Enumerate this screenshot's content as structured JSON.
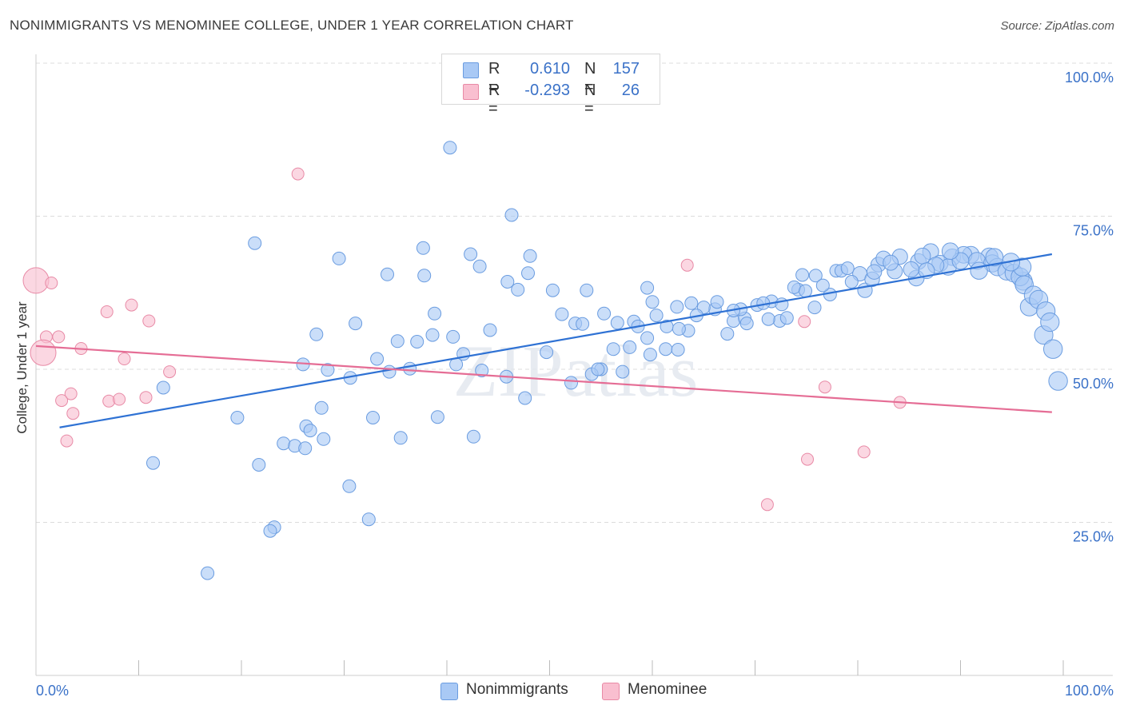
{
  "title": "NONIMMIGRANTS VS MENOMINEE COLLEGE, UNDER 1 YEAR CORRELATION CHART",
  "source": "Source: ZipAtlas.com",
  "watermark": "ZIPatlas",
  "legend": {
    "rows": [
      {
        "label": "R =",
        "r": "0.610",
        "n_label": "N =",
        "n": "157",
        "color": "#a9c9f5",
        "border": "#6a9ce0"
      },
      {
        "label": "R =",
        "r": "-0.293",
        "n_label": "N =",
        "n": "26",
        "color": "#f9bfd0",
        "border": "#e88aa6"
      }
    ]
  },
  "bottom_legend": [
    {
      "name": "Nonimmigrants",
      "color": "#a9c9f5",
      "border": "#6a9ce0"
    },
    {
      "name": "Menominee",
      "color": "#f9bfd0",
      "border": "#e88aa6"
    }
  ],
  "chart_data": {
    "type": "scatter",
    "title": "NONIMMIGRANTS VS MENOMINEE COLLEGE, UNDER 1 YEAR CORRELATION CHART",
    "xlabel": "",
    "ylabel": "College, Under 1 year",
    "xlim": [
      0,
      100
    ],
    "ylim": [
      0,
      100
    ],
    "x_tick_labels": [
      "0.0%",
      "100.0%"
    ],
    "y_tick_labels": [
      "25.0%",
      "50.0%",
      "75.0%",
      "100.0%"
    ],
    "y_ticks": [
      25,
      50,
      75,
      100
    ],
    "x_minor_ticks": [
      10,
      20,
      30,
      40,
      50,
      60,
      70,
      80,
      90
    ],
    "grid": true,
    "colors": {
      "blue_fill": "#a9c9f5",
      "blue_edge": "#6a9ce0",
      "blue_line": "#2f72d4",
      "pink_fill": "#f9bfd0",
      "pink_edge": "#e88aa6",
      "pink_line": "#e56d95",
      "tick_blue": "#3b72c8"
    },
    "series": [
      {
        "name": "Nonimmigrants",
        "trend": [
          [
            2.3,
            40.5
          ],
          [
            98.9,
            68.8
          ]
        ],
        "points": [
          [
            40.3,
            86.2
          ],
          [
            46.3,
            75.2
          ],
          [
            21.3,
            70.6
          ],
          [
            37.7,
            69.8
          ],
          [
            29.5,
            68.1
          ],
          [
            42.3,
            68.8
          ],
          [
            48.1,
            68.5
          ],
          [
            34.2,
            65.5
          ],
          [
            37.8,
            65.3
          ],
          [
            43.2,
            66.8
          ],
          [
            47.9,
            65.7
          ],
          [
            45.9,
            64.3
          ],
          [
            46.9,
            63.0
          ],
          [
            50.3,
            62.9
          ],
          [
            53.6,
            62.9
          ],
          [
            60.0,
            61.0
          ],
          [
            59.5,
            63.3
          ],
          [
            60.4,
            58.8
          ],
          [
            62.4,
            60.2
          ],
          [
            61.4,
            57.0
          ],
          [
            63.5,
            56.3
          ],
          [
            66.1,
            59.8
          ],
          [
            67.3,
            55.8
          ],
          [
            67.9,
            57.9
          ],
          [
            69.0,
            58.3
          ],
          [
            70.2,
            60.5
          ],
          [
            71.6,
            61.1
          ],
          [
            72.4,
            57.9
          ],
          [
            74.2,
            63.0
          ],
          [
            74.6,
            65.4
          ],
          [
            75.9,
            65.3
          ],
          [
            77.9,
            66.1
          ],
          [
            80.2,
            65.6
          ],
          [
            80.7,
            62.9
          ],
          [
            82.0,
            67.1
          ],
          [
            85.9,
            67.6
          ],
          [
            87.1,
            69.2
          ],
          [
            89.2,
            68.3
          ],
          [
            91.0,
            68.7
          ],
          [
            92.8,
            68.4
          ],
          [
            96.1,
            64.4
          ],
          [
            98.1,
            55.6
          ],
          [
            96.7,
            60.2
          ],
          [
            37.1,
            54.5
          ],
          [
            40.6,
            55.3
          ],
          [
            31.1,
            57.5
          ],
          [
            38.8,
            59.1
          ],
          [
            44.2,
            56.4
          ],
          [
            51.2,
            59.0
          ],
          [
            55.3,
            59.1
          ],
          [
            52.5,
            57.5
          ],
          [
            58.2,
            57.8
          ],
          [
            57.8,
            53.6
          ],
          [
            59.5,
            55.1
          ],
          [
            61.3,
            53.3
          ],
          [
            56.2,
            53.3
          ],
          [
            53.2,
            57.4
          ],
          [
            59.8,
            52.4
          ],
          [
            62.5,
            53.2
          ],
          [
            49.7,
            52.8
          ],
          [
            55.0,
            50.0
          ],
          [
            57.1,
            49.6
          ],
          [
            52.1,
            47.8
          ],
          [
            54.1,
            49.2
          ],
          [
            41.6,
            52.5
          ],
          [
            40.9,
            50.8
          ],
          [
            43.4,
            49.8
          ],
          [
            45.8,
            48.8
          ],
          [
            36.4,
            50.1
          ],
          [
            33.2,
            51.7
          ],
          [
            34.4,
            49.6
          ],
          [
            26.0,
            50.8
          ],
          [
            28.4,
            49.9
          ],
          [
            30.6,
            48.6
          ],
          [
            35.2,
            54.6
          ],
          [
            38.6,
            55.6
          ],
          [
            27.3,
            55.7
          ],
          [
            27.8,
            43.7
          ],
          [
            32.8,
            42.1
          ],
          [
            35.5,
            38.8
          ],
          [
            39.1,
            42.2
          ],
          [
            42.6,
            39.0
          ],
          [
            26.3,
            40.7
          ],
          [
            26.7,
            40.0
          ],
          [
            28.0,
            38.6
          ],
          [
            24.1,
            37.9
          ],
          [
            25.2,
            37.5
          ],
          [
            26.2,
            37.1
          ],
          [
            12.4,
            47.0
          ],
          [
            19.6,
            42.1
          ],
          [
            11.4,
            34.7
          ],
          [
            21.7,
            34.4
          ],
          [
            30.5,
            30.9
          ],
          [
            32.4,
            25.5
          ],
          [
            23.2,
            24.2
          ],
          [
            22.8,
            23.6
          ],
          [
            16.7,
            16.7
          ],
          [
            47.6,
            45.3
          ],
          [
            63.8,
            60.8
          ],
          [
            65.0,
            60.1
          ],
          [
            68.6,
            59.8
          ],
          [
            66.3,
            61.0
          ],
          [
            71.3,
            58.2
          ],
          [
            69.2,
            57.5
          ],
          [
            73.1,
            58.4
          ],
          [
            73.8,
            63.4
          ],
          [
            75.8,
            60.1
          ],
          [
            77.3,
            62.2
          ],
          [
            78.4,
            66.1
          ],
          [
            79.4,
            64.3
          ],
          [
            81.4,
            64.7
          ],
          [
            82.5,
            68.1
          ],
          [
            83.6,
            66.0
          ],
          [
            84.1,
            68.4
          ],
          [
            85.7,
            64.9
          ],
          [
            86.3,
            68.5
          ],
          [
            88.0,
            67.3
          ],
          [
            88.8,
            66.7
          ],
          [
            90.3,
            68.7
          ],
          [
            91.6,
            67.7
          ],
          [
            93.1,
            67.3
          ],
          [
            93.6,
            66.7
          ],
          [
            94.5,
            66.0
          ],
          [
            95.2,
            65.7
          ],
          [
            95.8,
            65.1
          ],
          [
            96.2,
            63.8
          ],
          [
            97.1,
            62.1
          ],
          [
            97.6,
            61.4
          ],
          [
            98.3,
            59.5
          ],
          [
            98.7,
            57.7
          ],
          [
            99.0,
            53.3
          ],
          [
            99.5,
            48.1
          ],
          [
            96.0,
            66.7
          ],
          [
            94.9,
            67.5
          ],
          [
            93.3,
            68.3
          ],
          [
            91.8,
            66.1
          ],
          [
            90.0,
            67.7
          ],
          [
            89.0,
            69.3
          ],
          [
            87.6,
            67.0
          ],
          [
            86.7,
            66.1
          ],
          [
            85.2,
            66.3
          ],
          [
            83.2,
            67.4
          ],
          [
            81.6,
            65.9
          ],
          [
            79.0,
            66.5
          ],
          [
            76.6,
            63.7
          ],
          [
            74.9,
            62.8
          ],
          [
            72.6,
            60.6
          ],
          [
            70.8,
            60.8
          ],
          [
            67.9,
            59.6
          ],
          [
            64.3,
            58.8
          ],
          [
            62.6,
            56.6
          ],
          [
            58.6,
            57.0
          ],
          [
            56.6,
            57.6
          ],
          [
            54.7,
            50.0
          ]
        ]
      },
      {
        "name": "Menominee",
        "trend": [
          [
            0.0,
            53.8
          ],
          [
            98.9,
            43.0
          ]
        ],
        "points": [
          [
            0.0,
            64.5
          ],
          [
            1.5,
            64.1
          ],
          [
            25.5,
            81.9
          ],
          [
            6.9,
            59.4
          ],
          [
            9.3,
            60.5
          ],
          [
            11.0,
            57.9
          ],
          [
            1.0,
            55.3
          ],
          [
            2.2,
            55.3
          ],
          [
            4.4,
            53.4
          ],
          [
            0.7,
            52.7
          ],
          [
            8.6,
            51.7
          ],
          [
            13.0,
            49.6
          ],
          [
            3.4,
            46.0
          ],
          [
            2.5,
            44.9
          ],
          [
            7.1,
            44.8
          ],
          [
            8.1,
            45.1
          ],
          [
            10.7,
            45.4
          ],
          [
            3.6,
            42.8
          ],
          [
            3.0,
            38.3
          ],
          [
            63.4,
            67.0
          ],
          [
            74.8,
            57.8
          ],
          [
            76.8,
            47.1
          ],
          [
            84.1,
            44.6
          ],
          [
            75.1,
            35.3
          ],
          [
            80.6,
            36.5
          ],
          [
            71.2,
            27.9
          ]
        ]
      }
    ]
  }
}
